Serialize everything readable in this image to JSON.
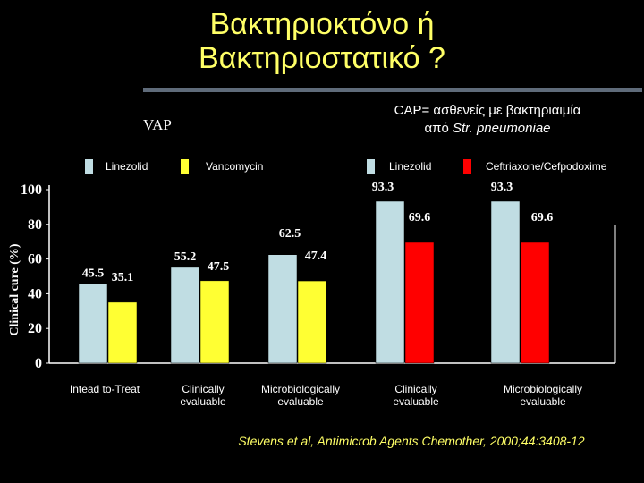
{
  "slide": {
    "title_line1": "Βακτηριοκτόνο ή",
    "title_line2": "Βακτηριοστατικό ?",
    "vap_label": "VAP",
    "cap_line1": "CAP= ασθενείς με βακτηριαιμία",
    "cap_prefix": "από ",
    "cap_organism": "Str. pneumoniae",
    "citation": "Stevens et al, Antimicrob Agents Chemother, 2000;44:3408-12"
  },
  "colors": {
    "linezolid": "#c0dde3",
    "vancomycin": "#ffff33",
    "ceftriaxone": "#ff0000",
    "title": "#ffff66"
  },
  "chart_data": {
    "type": "bar",
    "ylabel": "Clinical cure (%)",
    "ylim": [
      0,
      100
    ],
    "yticks": [
      0,
      20,
      40,
      60,
      80,
      100
    ],
    "grid": false,
    "legend_groups": [
      {
        "entries": [
          "Linezolid",
          "Vancomycin"
        ]
      },
      {
        "entries": [
          "Linezolid",
          "Ceftriaxone/Cefpodoxime"
        ]
      }
    ],
    "groups": [
      {
        "category": "Intead to-Treat",
        "section": "VAP",
        "bars": [
          {
            "series": "Linezolid",
            "value": 45.5
          },
          {
            "series": "Vancomycin",
            "value": 35.1
          }
        ]
      },
      {
        "category": "Clinically evaluable",
        "section": "VAP",
        "bars": [
          {
            "series": "Linezolid",
            "value": 55.2
          },
          {
            "series": "Vancomycin",
            "value": 47.5
          }
        ]
      },
      {
        "category": "Microbiologically evaluable",
        "section": "VAP",
        "bars": [
          {
            "series": "Linezolid",
            "value": 62.5
          },
          {
            "series": "Vancomycin",
            "value": 47.4
          }
        ]
      },
      {
        "category": "Clinically evaluable",
        "section": "CAP",
        "bars": [
          {
            "series": "Linezolid",
            "value": 93.3
          },
          {
            "series": "Ceftriaxone/Cefpodoxime",
            "value": 69.6
          }
        ]
      },
      {
        "category": "Microbiologically evaluable",
        "section": "CAP",
        "bars": [
          {
            "series": "Linezolid",
            "value": 93.3
          },
          {
            "series": "Ceftriaxone/Cefpodoxime",
            "value": 69.6
          }
        ]
      }
    ]
  }
}
